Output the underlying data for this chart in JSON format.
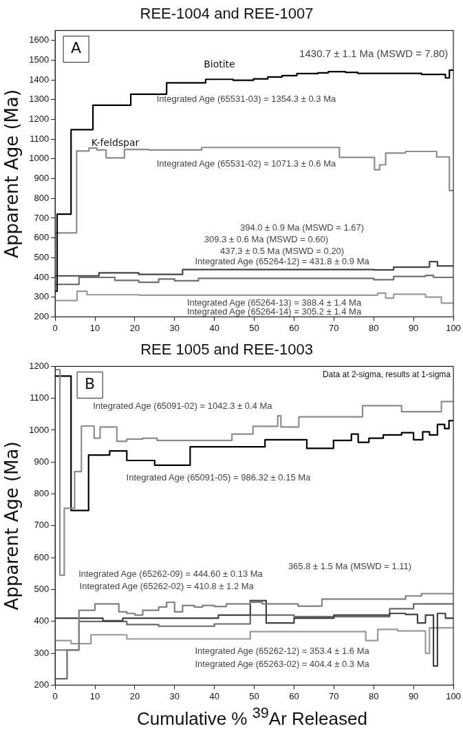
{
  "chart_data": [
    {
      "type": "step",
      "title": "REE-1004 and REE-1007",
      "ylabel": "Apparent Age (Ma)",
      "xlim": [
        0,
        100
      ],
      "xticks": [
        0,
        10,
        20,
        30,
        40,
        50,
        60,
        70,
        80,
        90,
        100
      ],
      "ylim": [
        200,
        1650
      ],
      "yticks": [
        200,
        300,
        400,
        500,
        600,
        700,
        800,
        900,
        1000,
        1100,
        1200,
        1300,
        1400,
        1500,
        1600
      ],
      "legend": false,
      "series": [
        {
          "name": "Biotite",
          "color": "#000000",
          "x": [
            0,
            0.5,
            4,
            9.5,
            19,
            28,
            37.8,
            44.7,
            49.8,
            53.4,
            57,
            60.7,
            66,
            68.6,
            72.9,
            76,
            92,
            98,
            99,
            100
          ],
          "values": [
            330,
            720,
            1148,
            1272,
            1328,
            1385,
            1403,
            1398,
            1405,
            1415,
            1422,
            1432,
            1436,
            1442,
            1438,
            1433,
            1428,
            1410,
            1450,
            1450
          ]
        },
        {
          "name": "K-feldspar",
          "color": "#8c8c8c",
          "x": [
            0,
            5.4,
            8.5,
            10.5,
            12.8,
            17.4,
            23.5,
            36.8,
            71.4,
            80.2,
            81.5,
            83,
            88,
            95.8,
            99,
            100
          ],
          "values": [
            625,
            1040,
            1055,
            1045,
            1005,
            1048,
            1045,
            1058,
            1008,
            945,
            970,
            1030,
            1038,
            1010,
            840,
            840
          ]
        },
        {
          "color": "#444444",
          "x": [
            0,
            11,
            21,
            32,
            80,
            85,
            94,
            96,
            100
          ],
          "values": [
            408,
            423,
            415,
            440,
            438,
            452,
            480,
            458,
            458
          ]
        },
        {
          "color": "#707070",
          "x": [
            0,
            6,
            15,
            21,
            26,
            30,
            36,
            80,
            85,
            93,
            95,
            100
          ],
          "values": [
            365,
            400,
            385,
            375,
            392,
            383,
            395,
            388,
            405,
            410,
            400,
            400
          ]
        },
        {
          "color": "#9a9a9a",
          "x": [
            0,
            5.5,
            8,
            21,
            81,
            83,
            85,
            93,
            97,
            100
          ],
          "values": [
            283,
            330,
            312,
            310,
            320,
            295,
            315,
            300,
            270,
            270
          ]
        }
      ],
      "annotations": [
        "A",
        "1430.7 ± 1.1 Ma (MSWD = 7.80)",
        "Integrated Age (65531-03) = 1354.3 ± 0.3 Ma",
        "Integrated Age (65531-02) = 1071.3 ± 0.6 Ma",
        "394.0 ± 0.9 Ma (MSWD = 1.67)",
        "309.3 ± 0.6 Ma (MSWD = 0.60)",
        "437.3 ± 0.5 Ma (MSWD = 0.20)",
        "Integrated Age (65264-12) = 431.8 ± 0.9 Ma",
        "Integrated Age (65264-13) = 388.4 ± 1.4 Ma",
        "Integrated Age (65264-14) = 305.2 ± 1.4 Ma"
      ]
    },
    {
      "type": "step",
      "title": "REE 1005 and REE-1003",
      "ylabel": "Apparent Age (Ma)",
      "xlabel": "Cumulative % $^{39}$Ar Released",
      "xlim": [
        0,
        100
      ],
      "xticks": [
        0,
        10,
        20,
        30,
        40,
        50,
        60,
        70,
        80,
        90,
        100
      ],
      "ylim": [
        200,
        1200
      ],
      "yticks": [
        200,
        300,
        400,
        500,
        600,
        700,
        800,
        900,
        1000,
        1100,
        1200
      ],
      "legend": false,
      "series": [
        {
          "color": "#8c8c8c",
          "x": [
            0,
            1.2,
            2.3,
            4.9,
            6.6,
            9.8,
            11.3,
            15.5,
            18,
            22,
            25.6,
            44.4,
            49.7,
            55.9,
            56.7,
            61.2,
            77.2,
            87,
            97,
            100
          ],
          "values": [
            1190,
            545,
            755,
            870,
            1013,
            975,
            1010,
            965,
            972,
            975,
            968,
            988,
            1012,
            1045,
            1010,
            1042,
            1077,
            1058,
            1090,
            1090
          ]
        },
        {
          "color": "#000000",
          "x": [
            0,
            4,
            8.4,
            13.7,
            18,
            25,
            33.9,
            52.7,
            63.2,
            69.9,
            74.4,
            76.1,
            78.8,
            82.4,
            87,
            90,
            92.3,
            94,
            96,
            97.8,
            98.9,
            100
          ],
          "values": [
            1170,
            748,
            922,
            935,
            905,
            890,
            948,
            970,
            943,
            968,
            988,
            962,
            975,
            985,
            992,
            970,
            995,
            985,
            1018,
            1005,
            1030,
            1030
          ]
        },
        {
          "color": "#808080",
          "x": [
            0,
            6,
            10,
            16,
            18,
            20,
            22,
            26,
            28,
            30,
            32,
            35,
            37,
            40,
            43,
            49,
            52,
            61,
            67,
            88,
            92,
            100
          ],
          "values": [
            310,
            435,
            455,
            430,
            425,
            420,
            435,
            445,
            460,
            430,
            450,
            445,
            450,
            447,
            455,
            460,
            455,
            448,
            470,
            480,
            487,
            487
          ]
        },
        {
          "color": "#404040",
          "x": [
            0,
            12,
            17,
            41,
            49,
            53,
            60,
            70,
            84,
            88,
            91,
            93,
            95,
            96,
            98,
            100
          ],
          "values": [
            410,
            402,
            410,
            420,
            465,
            395,
            410,
            420,
            425,
            422,
            395,
            420,
            260,
            425,
            410,
            410
          ]
        },
        {
          "color": "#999999",
          "x": [
            0,
            4,
            9,
            18,
            49,
            78,
            81,
            86,
            93,
            94,
            100
          ],
          "values": [
            340,
            330,
            358,
            345,
            368,
            340,
            375,
            370,
            300,
            380,
            380
          ]
        },
        {
          "color": "#6a6a6a",
          "x": [
            0,
            3,
            6,
            18,
            26,
            40,
            49,
            60,
            84,
            90,
            100
          ],
          "values": [
            220,
            310,
            400,
            390,
            385,
            392,
            420,
            415,
            440,
            455,
            455
          ]
        }
      ],
      "annotations": [
        "B",
        "Data at 2-sigma, results at 1-sigma",
        "Integrated Age (65091-02) = 1042.3 ± 0.4 Ma",
        "Integrated Age (65091-05) = 986.32 ± 0.15 Ma",
        "365.8 ± 1.5 Ma (MSWD = 1.11)",
        "Integrated Age (65262-09) = 444.60 ± 0.13 Ma",
        "Integrated Age (65262-02) = 410.8 ± 1.2 Ma",
        "Integrated Age (65262-12) = 353.4 ± 1.6 Ma",
        "Integrated Age (65263-02) = 404.4 ± 0.3 Ma"
      ]
    }
  ]
}
